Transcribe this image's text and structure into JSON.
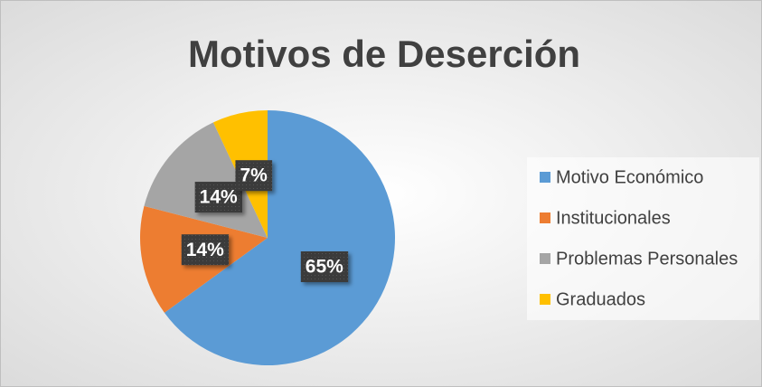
{
  "chart_data": {
    "type": "pie",
    "title": "Motivos de Deserción",
    "categories": [
      "Motivo Económico",
      "Institucionales",
      "Problemas Personales",
      "Graduados"
    ],
    "values": [
      65,
      14,
      14,
      7
    ],
    "value_labels": [
      "65%",
      "14%",
      "14%",
      "7%"
    ],
    "colors": [
      "#5b9bd5",
      "#ed7d31",
      "#a5a5a5",
      "#ffc000"
    ],
    "legend": "right"
  }
}
